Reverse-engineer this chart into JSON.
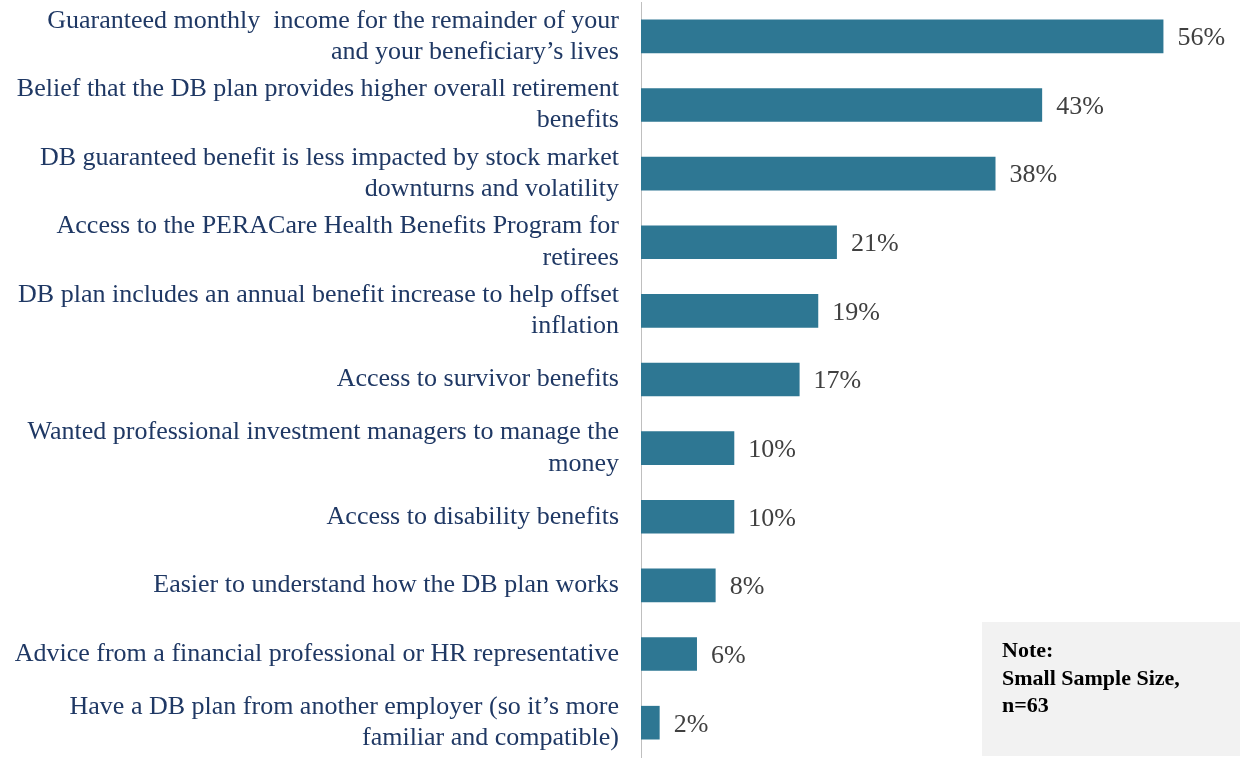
{
  "chart_data": {
    "type": "bar",
    "orientation": "horizontal",
    "categories": [
      "Guaranteed monthly  income for the remainder of your and your beneficiary’s lives",
      "Belief that the DB plan provides higher overall retirement benefits",
      "DB guaranteed benefit is less impacted by stock market downturns and volatility",
      "Access to the PERACare Health Benefits Program for retirees",
      "DB plan includes an annual benefit increase to help offset inflation",
      "Access to survivor benefits",
      "Wanted professional investment managers to manage the money",
      "Access to disability benefits",
      "Easier to understand how the DB plan works",
      "Advice from a financial professional or HR representative",
      "Have a DB plan from another employer (so it’s more familiar and compatible)"
    ],
    "values": [
      56,
      43,
      38,
      21,
      19,
      17,
      10,
      10,
      8,
      6,
      2
    ],
    "value_labels": [
      "56%",
      "43%",
      "38%",
      "21%",
      "19%",
      "17%",
      "10%",
      "10%",
      "8%",
      "6%",
      "2%"
    ],
    "color": "#2e7793",
    "grid": false,
    "legend": false,
    "tick_labels": "y",
    "annotations": [
      "Note:\nSmall Sample Size,\nn=63"
    ]
  }
}
